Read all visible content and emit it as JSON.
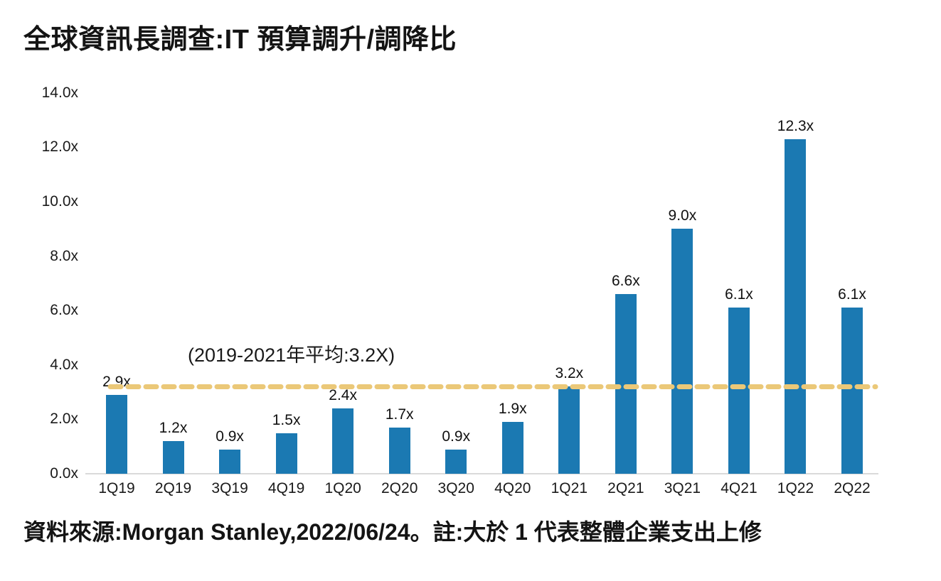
{
  "title": "全球資訊長調查:IT 預算調升/調降比",
  "source_note": "資料來源:Morgan Stanley,2022/06/24。註:大於 1 代表整體企業支出上修",
  "chart_data": {
    "type": "bar",
    "title": "全球資訊長調查:IT 預算調升/調降比",
    "categories": [
      "1Q19",
      "2Q19",
      "3Q19",
      "4Q19",
      "1Q20",
      "2Q20",
      "3Q20",
      "4Q20",
      "1Q21",
      "2Q21",
      "3Q21",
      "4Q21",
      "1Q22",
      "2Q22"
    ],
    "values": [
      2.9,
      1.2,
      0.9,
      1.5,
      2.4,
      1.7,
      0.9,
      1.9,
      3.2,
      6.6,
      9.0,
      6.1,
      12.3,
      6.1
    ],
    "bar_labels": [
      "2.9x",
      "1.2x",
      "0.9x",
      "1.5x",
      "2.4x",
      "1.7x",
      "0.9x",
      "1.9x",
      "3.2x",
      "6.6x",
      "9.0x",
      "6.1x",
      "12.3x",
      "6.1x"
    ],
    "xlabel": "",
    "ylabel": "",
    "ylim": [
      0,
      14
    ],
    "y_tick_step": 2,
    "y_tick_labels": [
      "0.0x",
      "2.0x",
      "4.0x",
      "6.0x",
      "8.0x",
      "10.0x",
      "12.0x",
      "14.0x"
    ],
    "grid": false,
    "legend": false,
    "reference_line": {
      "value": 3.2,
      "label": "(2019-2021年平均:3.2X)"
    },
    "colors": {
      "bar": "#1b79b2",
      "reference_line": "#ebc878",
      "axis": "#dadada",
      "text": "#141414"
    }
  }
}
